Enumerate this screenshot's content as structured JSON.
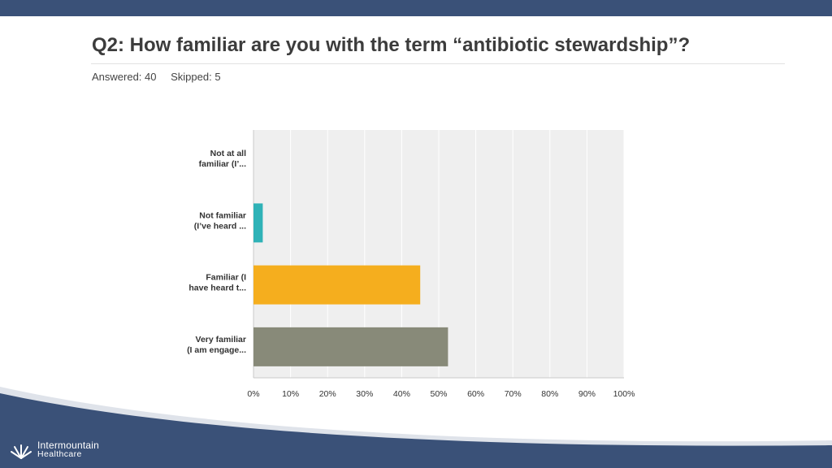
{
  "slide": {
    "title": "Q2: How familiar are you with the term “antibiotic stewardship”?",
    "answered": "Answered: 40",
    "skipped": "Skipped: 5"
  },
  "brand": {
    "line1": "Intermountain",
    "line2": "Healthcare",
    "primary_color": "#3a5178"
  },
  "chart_data": {
    "type": "bar",
    "orientation": "horizontal",
    "categories": [
      [
        "Not at all",
        "familiar (I’..."
      ],
      [
        "Not familiar",
        "(I’ve heard ..."
      ],
      [
        "Familiar (I",
        "have heard t..."
      ],
      [
        "Very familiar",
        "(I am engage..."
      ]
    ],
    "values": [
      0,
      2.5,
      45,
      52.5
    ],
    "colors": [
      "#2fb2b7",
      "#2fb2b7",
      "#f5ae1e",
      "#888a79"
    ],
    "x_ticks": [
      "0%",
      "10%",
      "20%",
      "30%",
      "40%",
      "50%",
      "60%",
      "70%",
      "80%",
      "90%",
      "100%"
    ],
    "xlim": [
      0,
      100
    ],
    "grid": true,
    "title": "",
    "xlabel": "",
    "ylabel": ""
  }
}
